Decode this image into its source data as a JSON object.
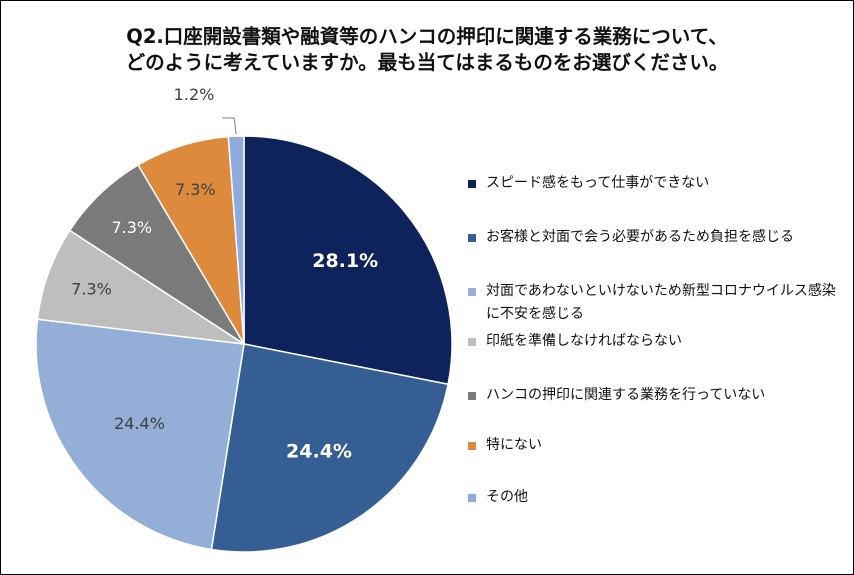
{
  "chart_data": {
    "type": "pie",
    "title_line1": "Q2.口座開設書類や融資等のハンコの押印に関連する業務について、",
    "title_line2": "どのように考えていますか。最も当てはまるものをお選びください。",
    "slices": [
      {
        "label": "スピード感をもって仕事ができない",
        "value": 28.1,
        "display": "28.1%",
        "color": "#0e235c",
        "label_color": "#ffffff",
        "bold": true
      },
      {
        "label": "お客様と対面で会う必要があるため負担を感じる",
        "value": 24.4,
        "display": "24.4%",
        "color": "#355f94",
        "label_color": "#ffffff",
        "bold": true
      },
      {
        "label": "対面であわないといけないため新型コロナウイルス感染に不安を感じる",
        "value": 24.4,
        "display": "24.4%",
        "color": "#93afd7",
        "label_color": "#404040",
        "bold": false
      },
      {
        "label": "印紙を準備しなければならない",
        "value": 7.3,
        "display": "7.3%",
        "color": "#bebebe",
        "label_color": "#404040",
        "bold": false
      },
      {
        "label": "ハンコの押印に関連する業務を行っていない",
        "value": 7.3,
        "display": "7.3%",
        "color": "#7a7a7a",
        "label_color": "#ffffff",
        "bold": false
      },
      {
        "label": "特にない",
        "value": 7.3,
        "display": "7.3%",
        "color": "#dd8a3c",
        "label_color": "#404040",
        "bold": false
      },
      {
        "label": "その他",
        "value": 1.2,
        "display": "1.2%",
        "color": "#8faadc",
        "label_color": "#404040",
        "bold": false
      }
    ]
  }
}
